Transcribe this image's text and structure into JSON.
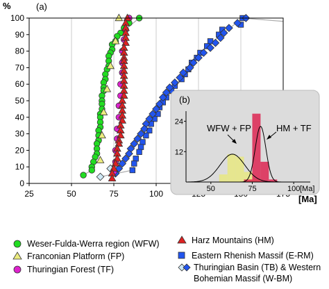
{
  "chart_data": [
    {
      "type": "scatter",
      "panel_label": "(a)",
      "ylabel": "%",
      "xlabel": "[Ma]",
      "xlim": [
        25,
        175
      ],
      "ylim": [
        0,
        100
      ],
      "x_ticks": [
        25,
        50,
        75,
        100,
        125,
        150,
        175
      ],
      "y_ticks": [
        0,
        10,
        20,
        30,
        40,
        50,
        60,
        70,
        80,
        90,
        100
      ],
      "grid": "vertical",
      "series": [
        {
          "name": "Weser-Fulda-Werra region (WFW)",
          "marker": "circle",
          "color": "#22dd22",
          "points": [
            [
              90,
              100
            ],
            [
              84,
              97
            ],
            [
              81,
              94
            ],
            [
              79,
              91
            ],
            [
              77,
              89
            ],
            [
              76,
              86
            ],
            [
              74,
              84
            ],
            [
              74,
              81
            ],
            [
              73,
              79
            ],
            [
              72,
              77
            ],
            [
              72,
              74
            ],
            [
              72,
              71
            ],
            [
              71,
              69
            ],
            [
              70,
              66
            ],
            [
              70,
              63
            ],
            [
              69,
              61
            ],
            [
              69,
              58
            ],
            [
              69,
              56
            ],
            [
              68,
              53
            ],
            [
              68,
              50
            ],
            [
              68,
              48
            ],
            [
              68,
              45
            ],
            [
              67,
              42
            ],
            [
              67,
              40
            ],
            [
              67,
              37
            ],
            [
              67,
              34
            ],
            [
              66,
              32
            ],
            [
              66,
              29
            ],
            [
              66,
              26
            ],
            [
              65,
              24
            ],
            [
              65,
              21
            ],
            [
              65,
              18
            ],
            [
              64,
              16
            ],
            [
              63,
              13
            ],
            [
              62,
              10
            ],
            [
              62,
              8
            ],
            [
              57,
              5
            ]
          ]
        },
        {
          "name": "Franconian Platform (FP)",
          "marker": "triangle",
          "color": "#ecec80",
          "points": [
            [
              78,
              100
            ],
            [
              76,
              86
            ],
            [
              73,
              71
            ],
            [
              71,
              57
            ],
            [
              69,
              43
            ],
            [
              68,
              29
            ],
            [
              67,
              14
            ]
          ]
        },
        {
          "name": "Thuringian Forest (TF)",
          "marker": "circle",
          "color": "#dd22cc",
          "points": [
            [
              84,
              100
            ],
            [
              82,
              93
            ],
            [
              81,
              87
            ],
            [
              80,
              80
            ],
            [
              80,
              73
            ],
            [
              80,
              67
            ],
            [
              79,
              60
            ],
            [
              79,
              53
            ],
            [
              78,
              47
            ],
            [
              78,
              40
            ],
            [
              77,
              33
            ],
            [
              77,
              27
            ],
            [
              76,
              20
            ],
            [
              76,
              13
            ],
            [
              75,
              7
            ]
          ]
        },
        {
          "name": "Harz Mountains (HM)",
          "marker": "triangle",
          "color": "#dd2222",
          "points": [
            [
              83,
              100
            ],
            [
              82,
              97
            ],
            [
              82,
              94
            ],
            [
              82,
              91
            ],
            [
              82,
              88
            ],
            [
              82,
              85
            ],
            [
              81,
              82
            ],
            [
              81,
              79
            ],
            [
              81,
              76
            ],
            [
              81,
              74
            ],
            [
              81,
              71
            ],
            [
              81,
              68
            ],
            [
              81,
              65
            ],
            [
              81,
              62
            ],
            [
              81,
              59
            ],
            [
              81,
              56
            ],
            [
              81,
              53
            ],
            [
              80,
              50
            ],
            [
              80,
              47
            ],
            [
              80,
              44
            ],
            [
              80,
              41
            ],
            [
              80,
              38
            ],
            [
              79,
              35
            ],
            [
              79,
              32
            ],
            [
              79,
              29
            ],
            [
              78,
              26
            ],
            [
              78,
              24
            ],
            [
              77,
              21
            ],
            [
              77,
              18
            ],
            [
              77,
              15
            ],
            [
              76,
              12
            ],
            [
              75,
              9
            ],
            [
              74,
              6
            ],
            [
              74,
              3
            ]
          ]
        },
        {
          "name": "Eastern Rhenish Massif (E-RM)",
          "marker": "square",
          "color": "#2255ee",
          "points": [
            [
              151,
              100
            ],
            [
              150,
              96
            ],
            [
              139,
              93
            ],
            [
              137,
              90
            ],
            [
              132,
              86
            ],
            [
              130,
              83
            ],
            [
              126,
              79
            ],
            [
              124,
              76
            ],
            [
              121,
              73
            ],
            [
              119,
              69
            ],
            [
              117,
              66
            ],
            [
              115,
              63
            ],
            [
              111,
              59
            ],
            [
              109,
              56
            ],
            [
              106,
              52
            ],
            [
              104,
              49
            ],
            [
              102,
              46
            ],
            [
              101,
              42
            ],
            [
              99,
              39
            ],
            [
              97,
              36
            ],
            [
              96,
              32
            ],
            [
              94,
              29
            ],
            [
              92,
              25
            ],
            [
              91,
              22
            ],
            [
              90,
              19
            ],
            [
              88,
              15
            ],
            [
              87,
              12
            ],
            [
              86,
              8
            ]
          ]
        },
        {
          "name": "Thuringian Basin (TB) & Western Bohemian Massif (W-BM)",
          "marker": "diamond",
          "color": "#2255ee",
          "points": [
            [
              153,
              100
            ],
            [
              148,
              97
            ],
            [
              143,
              94
            ],
            [
              140,
              91
            ],
            [
              138,
              88
            ],
            [
              135,
              85
            ],
            [
              132,
              82
            ],
            [
              128,
              79
            ],
            [
              125,
              76
            ],
            [
              122,
              73
            ],
            [
              120,
              70
            ],
            [
              116,
              67
            ],
            [
              114,
              64
            ],
            [
              111,
              61
            ],
            [
              108,
              58
            ],
            [
              106,
              55
            ],
            [
              104,
              52
            ],
            [
              102,
              48
            ],
            [
              100,
              45
            ],
            [
              98,
              42
            ],
            [
              96,
              39
            ],
            [
              94,
              36
            ],
            [
              93,
              33
            ],
            [
              91,
              30
            ],
            [
              89,
              27
            ],
            [
              87,
              24
            ],
            [
              85,
              21
            ],
            [
              84,
              18
            ],
            [
              82,
              15
            ],
            [
              80,
              12
            ],
            [
              78,
              9
            ],
            [
              76,
              6
            ]
          ]
        },
        {
          "name": "Thuringian Basin (TB)",
          "marker": "diamond",
          "color": "#cfe8f5",
          "points": [
            [
              67,
              4
            ],
            [
              73,
              9
            ]
          ]
        }
      ],
      "reference_lines": [
        {
          "color": "#aaaaaa",
          "points": [
            [
              57,
              5
            ],
            [
              62,
              8
            ],
            [
              65,
              18
            ],
            [
              68,
              48
            ],
            [
              72,
              77
            ],
            [
              77,
              89
            ],
            [
              90,
              100
            ]
          ]
        },
        {
          "color": "#aaaaaa",
          "points": [
            [
              74,
              3
            ],
            [
              77,
              15
            ],
            [
              80,
              38
            ],
            [
              81,
              62
            ],
            [
              82,
              88
            ],
            [
              83,
              100
            ]
          ]
        },
        {
          "color": "#aaaaaa",
          "points": [
            [
              67,
              4
            ],
            [
              86,
              8
            ],
            [
              92,
              25
            ],
            [
              102,
              46
            ],
            [
              115,
              63
            ],
            [
              130,
              83
            ],
            [
              151,
              100
            ],
            [
              175,
              98
            ]
          ]
        }
      ]
    },
    {
      "type": "histogram",
      "panel_label": "(b)",
      "xlabel": "[Ma]",
      "x_ticks": [
        50,
        75,
        100
      ],
      "y_ticks": [
        12,
        24
      ],
      "xlim": [
        35,
        110
      ],
      "ylim": [
        0,
        28
      ],
      "series": [
        {
          "name": "WFW + FP",
          "color": "#e6e68a",
          "bins": [
            [
              55,
              60,
              3
            ],
            [
              60,
              65,
              11
            ],
            [
              65,
              70,
              10
            ],
            [
              70,
              75,
              4
            ],
            [
              75,
              80,
              1
            ]
          ],
          "curve_peak": {
            "x": 63,
            "y": 11
          }
        },
        {
          "name": "HM + TF",
          "color": "#dd1a4a",
          "bins": [
            [
              70,
              75,
              1
            ],
            [
              75,
              80,
              27
            ],
            [
              80,
              85,
              8
            ],
            [
              85,
              90,
              1
            ]
          ],
          "curve_peak": {
            "x": 80,
            "y": 22
          }
        }
      ],
      "annotations": [
        "WFW + FP",
        "HM + TF"
      ]
    }
  ],
  "legend": {
    "left": [
      {
        "label": "Weser-Fulda-Werra region (WFW)",
        "marker": "circle",
        "color": "#22dd22"
      },
      {
        "label": "Franconian Platform (FP)",
        "marker": "triangle",
        "color": "#ecec80"
      },
      {
        "label": "Thuringian Forest (TF)",
        "marker": "circle",
        "color": "#dd22cc"
      }
    ],
    "right": [
      {
        "label": "Harz Mountains (HM)",
        "marker": "triangle",
        "color": "#dd2222"
      },
      {
        "label": "Eastern Rhenish Massif (E-RM)",
        "marker": "square",
        "color": "#2255ee"
      },
      {
        "label_line1": "Thuringian Basin (TB) & Western",
        "label_line2": "Bohemian Massif (W-BM)",
        "marker": "diamond-pair",
        "colors": [
          "#cfe8f5",
          "#2255ee"
        ]
      }
    ]
  }
}
